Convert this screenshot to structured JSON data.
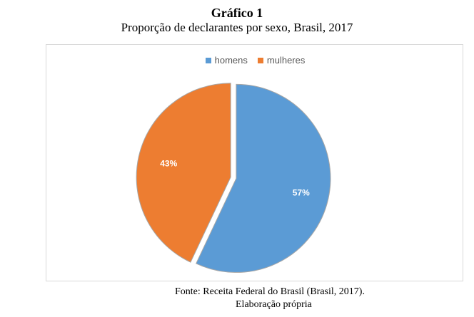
{
  "header": {
    "title": "Gráfico 1",
    "subtitle": "Proporção de declarantes por sexo, Brasil, 2017"
  },
  "chart_data": {
    "type": "pie",
    "title": "",
    "series": [
      {
        "name": "homens",
        "value": 57,
        "label": "57%",
        "color": "#5b9bd5"
      },
      {
        "name": "mulheres",
        "value": 43,
        "label": "43%",
        "color": "#ed7d31"
      }
    ],
    "legend_position": "top"
  },
  "footer": {
    "source": "Fonte: Receita Federal do Brasil (Brasil, 2017).",
    "note": "Elaboração própria"
  }
}
